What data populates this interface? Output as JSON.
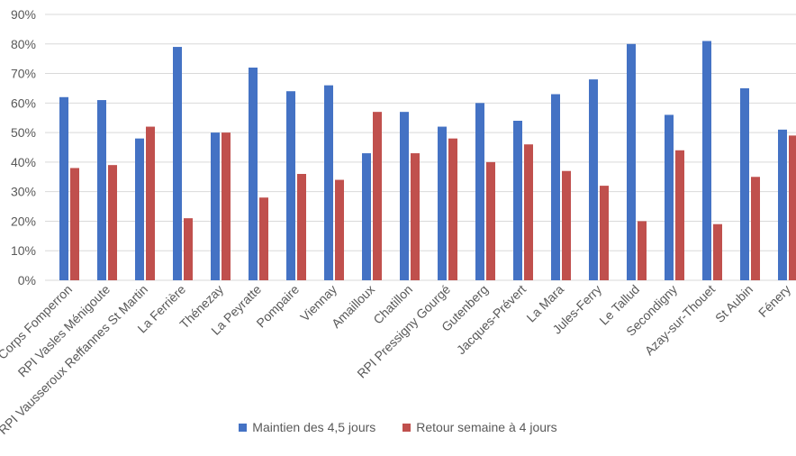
{
  "chart_data": {
    "type": "bar",
    "categories": [
      "Corps Fomperron",
      "RPI Vasles Ménigoute",
      "RPI Vausseroux Reffannes St Martin",
      "La Ferrière",
      "Thénezay",
      "La Peyratte",
      "Pompaire",
      "Viennay",
      "Amailloux",
      "Chatillon",
      "RPI Pressigny Gourgé",
      "Gutenberg",
      "Jacques-Prévert",
      "La Mara",
      "Jules-Ferry",
      "Le Tallud",
      "Secondigny",
      "Azay-sur-Thouet",
      "St Aubin",
      "Fénery"
    ],
    "series": [
      {
        "name": "Maintien des 4,5 jours",
        "color": "#4472c4",
        "values": [
          62,
          61,
          48,
          79,
          50,
          72,
          64,
          66,
          43,
          57,
          52,
          60,
          54,
          63,
          68,
          80,
          56,
          81,
          65,
          51
        ]
      },
      {
        "name": "Retour semaine à 4 jours",
        "color": "#c0504d",
        "values": [
          38,
          39,
          52,
          21,
          50,
          28,
          36,
          34,
          57,
          43,
          48,
          40,
          46,
          37,
          32,
          20,
          44,
          19,
          35,
          49
        ]
      }
    ],
    "y_ticks": [
      "0%",
      "10%",
      "20%",
      "30%",
      "40%",
      "50%",
      "60%",
      "70%",
      "80%",
      "90%"
    ],
    "ylim": [
      0,
      90
    ],
    "grid": true,
    "legend_position": "bottom"
  }
}
